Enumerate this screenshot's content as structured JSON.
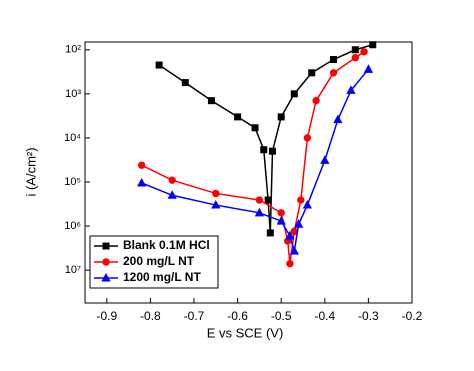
{
  "chart_data": {
    "type": "line",
    "x_label": "E vs SCE (V)",
    "y_label": "i  (A/cm²)",
    "xlim": [
      -0.95,
      -0.2
    ],
    "xticks": [
      -0.9,
      -0.8,
      -0.7,
      -0.6,
      -0.5,
      -0.4,
      -0.3,
      -0.2
    ],
    "ylim": [
      1.8e-08,
      0.015
    ],
    "log_y": true,
    "yticks": [
      {
        "value": 0.01,
        "label": "10²"
      },
      {
        "value": 0.001,
        "label": "10³"
      },
      {
        "value": 0.0001,
        "label": "10⁴"
      },
      {
        "value": 1e-05,
        "label": "10⁵"
      },
      {
        "value": 1e-06,
        "label": "10⁶"
      },
      {
        "value": 1e-07,
        "label": "10⁷"
      }
    ],
    "legend": "lower left",
    "series": [
      {
        "name": "Blank 0.1M HCl",
        "color": "#000000",
        "marker": "square",
        "x": [
          -0.78,
          -0.72,
          -0.66,
          -0.6,
          -0.56,
          -0.54,
          -0.53,
          -0.525,
          -0.52,
          -0.5,
          -0.47,
          -0.43,
          -0.38,
          -0.33,
          -0.29
        ],
        "values": [
          0.0045,
          0.0018,
          0.0007,
          0.0003,
          0.00017,
          5.4e-05,
          3.9e-06,
          7e-07,
          5e-05,
          0.0003,
          0.001,
          0.003,
          0.006,
          0.01,
          0.013
        ]
      },
      {
        "name": "200 mg/L NT",
        "color": "#ff0000",
        "marker": "circle",
        "x": [
          -0.82,
          -0.75,
          -0.65,
          -0.55,
          -0.5,
          -0.485,
          -0.48,
          -0.47,
          -0.455,
          -0.44,
          -0.42,
          -0.38,
          -0.33,
          -0.31
        ],
        "values": [
          2.4e-05,
          1.1e-05,
          5.5e-06,
          3.9e-06,
          2e-06,
          4.6e-07,
          1.4e-07,
          7.6e-07,
          3.9e-06,
          0.0001,
          0.0007,
          0.003,
          0.0066,
          0.009
        ]
      },
      {
        "name": "1200 mg/L NT",
        "color": "#0000ff",
        "marker": "triangle",
        "x": [
          -0.82,
          -0.75,
          -0.65,
          -0.55,
          -0.5,
          -0.48,
          -0.47,
          -0.46,
          -0.44,
          -0.4,
          -0.37,
          -0.34,
          -0.3
        ],
        "values": [
          9.5e-06,
          5e-06,
          3e-06,
          2e-06,
          1.3e-06,
          6e-07,
          2.7e-07,
          1.1e-06,
          3e-06,
          3.1e-05,
          0.00026,
          0.0012,
          0.0036
        ]
      }
    ]
  }
}
